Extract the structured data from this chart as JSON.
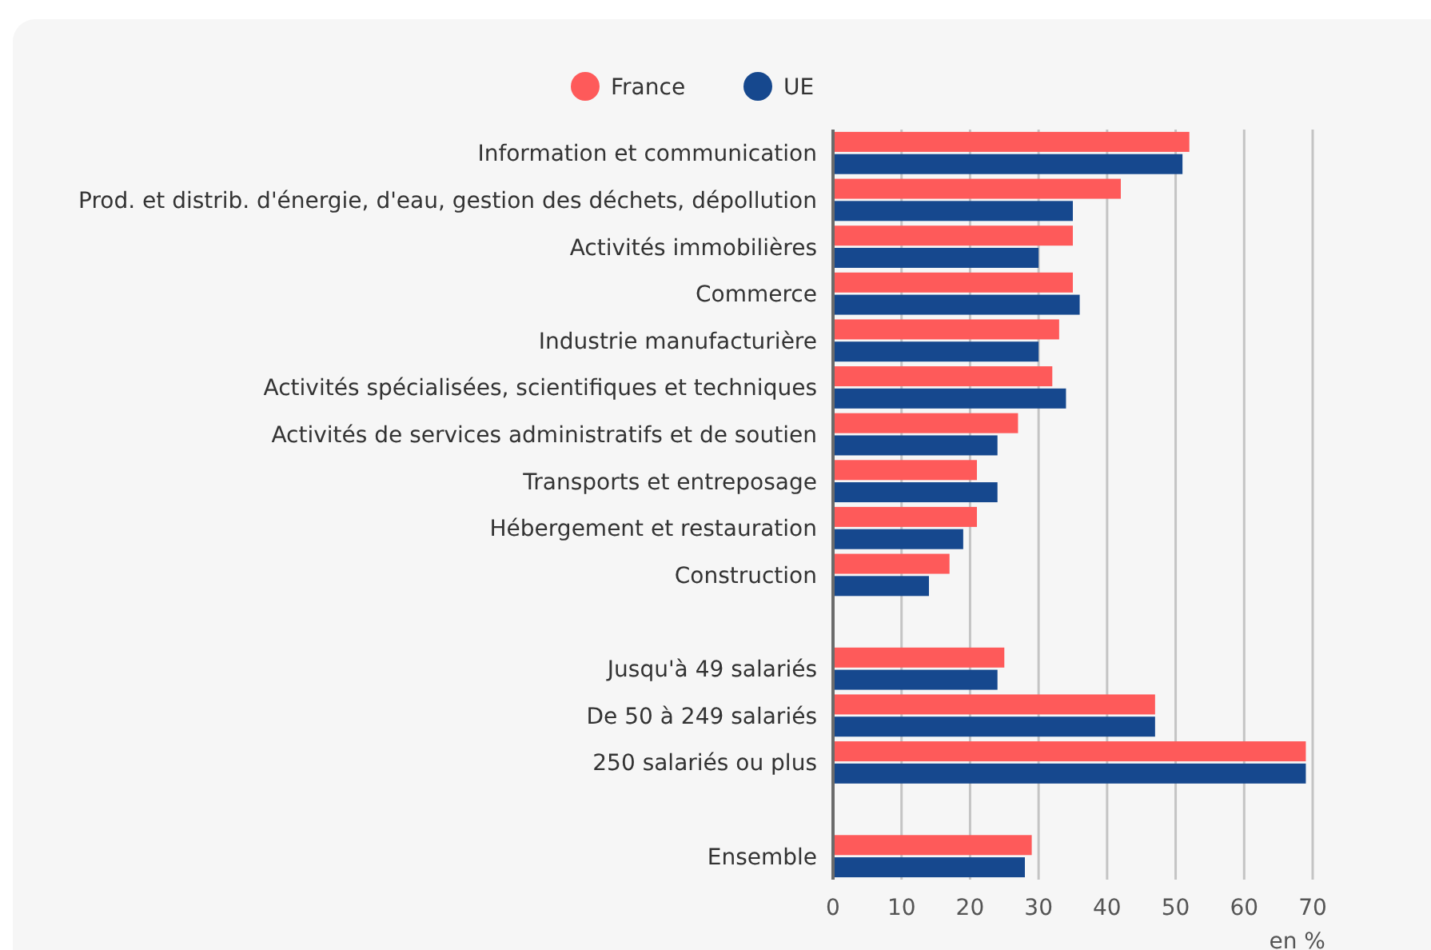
{
  "chart_data": {
    "type": "bar",
    "orientation": "horizontal",
    "categories": [
      "Information et communication",
      "Prod. et distrib. d'énergie, d'eau, gestion des déchets, dépollution",
      "Activités immobilières",
      "Commerce",
      "Industrie manufacturière",
      "Activités spécialisées, scientifiques et techniques",
      "Activités de services administratifs et de soutien",
      "Transports et entreposage",
      "Hébergement et restauration",
      "Construction",
      null,
      "Jusqu'à 49 salariés",
      "De 50 à 249 salariés",
      "250 salariés ou plus",
      null,
      "Ensemble"
    ],
    "series": [
      {
        "name": "France",
        "color": "#fe5a5a",
        "values": [
          52,
          42,
          35,
          35,
          33,
          32,
          27,
          21,
          21,
          17,
          null,
          25,
          47,
          69,
          null,
          29
        ]
      },
      {
        "name": "UE",
        "color": "#16488e",
        "values": [
          51,
          35,
          30,
          36,
          30,
          34,
          24,
          24,
          19,
          14,
          null,
          24,
          47,
          69,
          null,
          28
        ]
      }
    ],
    "xlim": [
      0,
      70
    ],
    "xticks": [
      0,
      10,
      20,
      30,
      40,
      50,
      60,
      70
    ],
    "xlabel": "en %",
    "grid": "x",
    "legend": "top"
  }
}
